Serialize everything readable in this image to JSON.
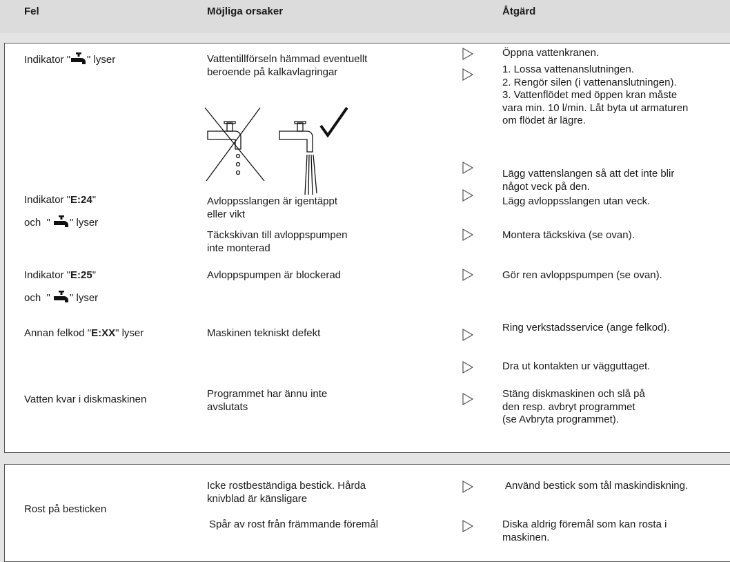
{
  "header": {
    "fault": "Fel",
    "cause": "Möjliga orsaker",
    "action": "Åtgärd"
  },
  "rows": [
    {
      "fault": [
        "Indikator \"",
        "\" lyser"
      ],
      "causes": [
        [
          "Vattentillförseln hämmad eventuellt",
          "beroende på kalkavlagringar"
        ]
      ],
      "actions": [
        [
          "Öppna vattenkranen."
        ],
        [
          "1. Lossa vattenanslutningen.",
          "2. Rengör silen (i vattenanslutningen).",
          "3. Vattenflödet med öppen kran måste",
          "vara min. 10 l/min. Låt byta ut armaturen",
          "om flödet är lägre."
        ],
        [
          "Lägg vattenslangen så att det inte blir",
          "något veck på den."
        ]
      ]
    },
    {
      "fault": [
        "Indikator \"",
        "E:24",
        "\"",
        "och  \" ",
        "\" lyser"
      ],
      "causes": [
        [
          "Avloppsslangen är igentäppt",
          "eller vikt"
        ],
        [
          "Täckskivan till avloppspumpen",
          "inte monterad"
        ]
      ],
      "actions": [
        [
          "Lägg avloppsslangen utan veck."
        ],
        [
          "Montera täckskiva (se ovan)."
        ]
      ]
    },
    {
      "fault": [
        "Indikator \"",
        "E:25",
        "\"",
        "och  \" ",
        "\" lyser"
      ],
      "causes": [
        [
          "Avloppspumpen är blockerad"
        ]
      ],
      "actions": [
        [
          "Gör ren avloppspumpen (se ovan)."
        ]
      ]
    },
    {
      "fault": [
        "Annan felkod \"",
        "E:XX",
        "\" lyser"
      ],
      "causes": [
        [
          "Maskinen tekniskt defekt"
        ]
      ],
      "actions": [
        [
          "Ring verkstadsservice (ange felkod)."
        ],
        [
          "Dra ut kontakten ur vägguttaget."
        ]
      ]
    },
    {
      "fault": [
        "Vatten kvar i diskmaskinen"
      ],
      "causes": [
        [
          "Programmet har ännu inte",
          "avslutats"
        ]
      ],
      "actions": [
        [
          "Stäng diskmaskinen och slå på",
          "den resp. avbryt programmet",
          "(se Avbryta programmet)."
        ]
      ]
    },
    {
      "fault": [
        "Rost på besticken"
      ],
      "causes": [
        [
          "Icke rostbeständiga bestick. Hårda",
          "knivblad är känsligare"
        ],
        [
          "Spår av rost från främmande föremål"
        ]
      ],
      "actions": [
        [
          "Använd bestick som tål maskindiskning."
        ],
        [
          "Diska aldrig föremål som kan rosta i",
          "maskinen."
        ]
      ]
    }
  ]
}
